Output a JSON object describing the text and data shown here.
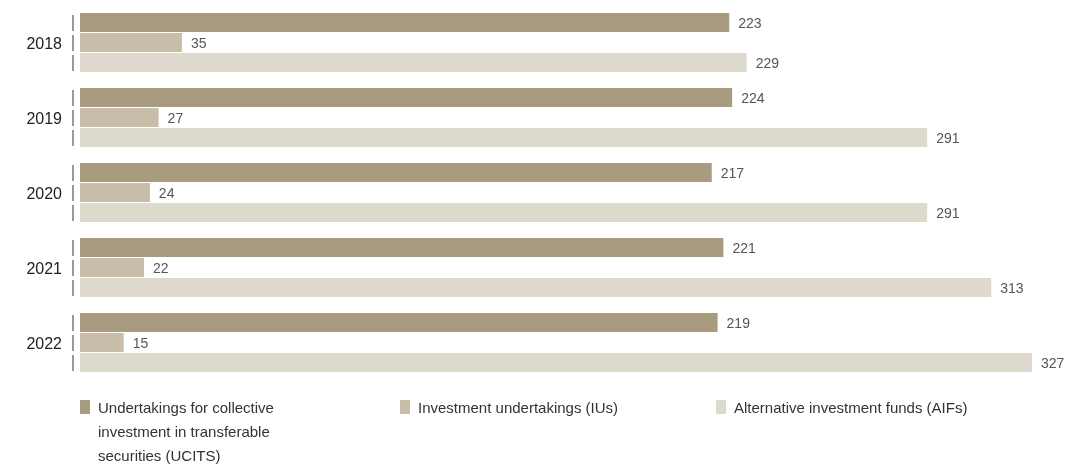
{
  "chart_data": {
    "type": "bar",
    "orientation": "horizontal",
    "categories": [
      "2018",
      "2019",
      "2020",
      "2021",
      "2022"
    ],
    "series": [
      {
        "name": "Undertakings for collective investment in transferable securities (UCITS)",
        "color": "#a89b80",
        "values": [
          223,
          224,
          217,
          221,
          219
        ]
      },
      {
        "name": "Investment undertakings (IUs)",
        "color": "#c7bda8",
        "values": [
          35,
          27,
          24,
          22,
          15
        ]
      },
      {
        "name": "Alternative investment funds (AIFs)",
        "color": "#ddd9cc",
        "values": [
          229,
          291,
          291,
          313,
          327
        ]
      }
    ],
    "data_labels": true,
    "legend": "bottom"
  }
}
